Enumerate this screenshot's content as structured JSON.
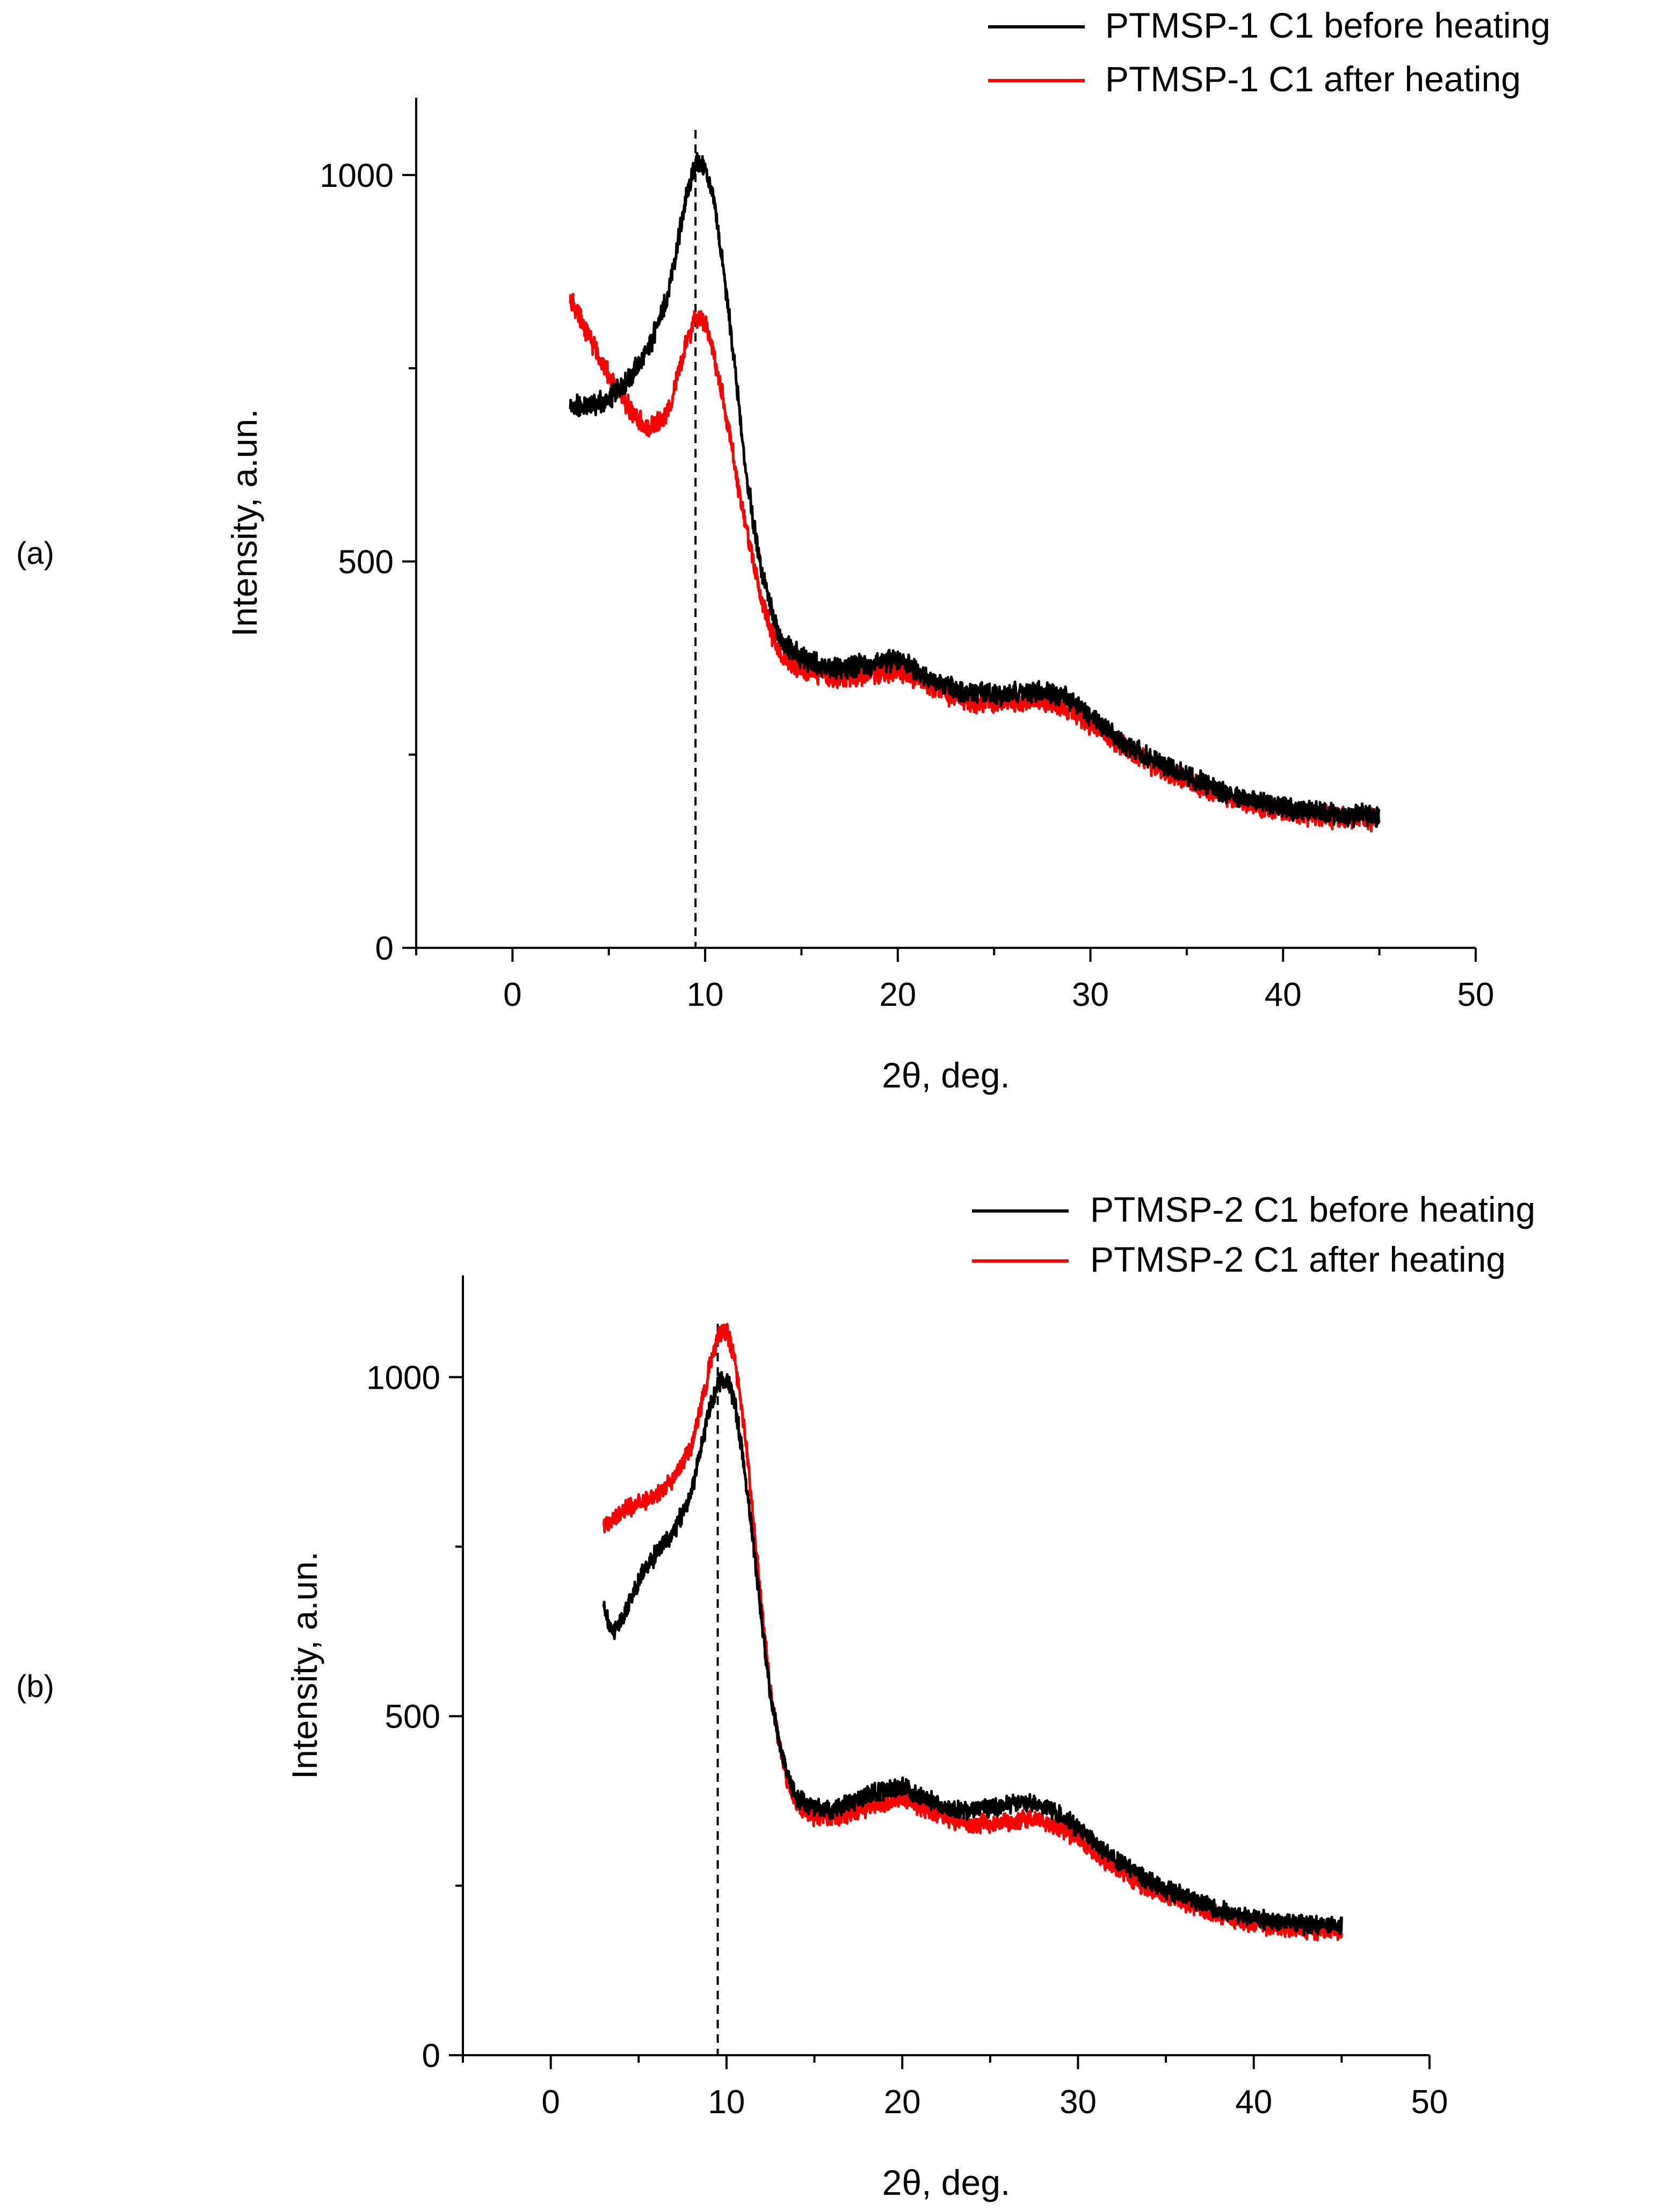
{
  "chart_data": [
    {
      "type": "line",
      "panel_label": "(a)",
      "xlabel": "2θ, deg.",
      "ylabel": "Intensity, a.un.",
      "xlim": [
        -5,
        50
      ],
      "ylim": [
        0,
        1100
      ],
      "xticks": [
        0,
        10,
        20,
        30,
        40,
        50
      ],
      "xtick_labels": [
        "0",
        "10",
        "20",
        "30",
        "40",
        "50"
      ],
      "yticks": [
        0,
        500,
        1000
      ],
      "ytick_labels": [
        "0",
        "500",
        "1000"
      ],
      "minor_xticks": [
        -5,
        5,
        15,
        25,
        35,
        45
      ],
      "minor_yticks": [
        250,
        750
      ],
      "reference_line_x": 9.5,
      "legend_position": "top-right",
      "series": [
        {
          "name": "PTMSP-1 C1 before heating",
          "color": "#000000",
          "x": [
            3,
            4,
            5,
            6,
            7,
            8,
            8.5,
            9,
            9.5,
            10,
            10.5,
            11,
            11.5,
            12,
            12.5,
            13,
            13.5,
            14,
            15,
            16,
            17,
            18,
            19,
            20,
            21,
            22,
            23,
            24,
            25,
            26,
            27,
            28,
            29,
            30,
            31,
            32,
            33,
            34,
            35,
            36,
            37,
            38,
            39,
            40,
            41,
            42,
            43,
            44,
            45
          ],
          "y": [
            700,
            700,
            710,
            735,
            770,
            840,
            900,
            970,
            1015,
            1010,
            960,
            870,
            760,
            640,
            550,
            480,
            430,
            395,
            375,
            365,
            360,
            365,
            370,
            372,
            360,
            345,
            335,
            330,
            328,
            330,
            332,
            330,
            320,
            300,
            280,
            260,
            245,
            235,
            222,
            212,
            202,
            195,
            188,
            182,
            178,
            175,
            173,
            172,
            172
          ]
        },
        {
          "name": "PTMSP-1 C1 after heating",
          "color": "#ff0000",
          "x": [
            3,
            4,
            5,
            6,
            7,
            8,
            8.5,
            9,
            9.5,
            10,
            10.5,
            11,
            11.5,
            12,
            12.5,
            13,
            13.5,
            14,
            15,
            16,
            17,
            18,
            19,
            20,
            21,
            22,
            23,
            24,
            25,
            26,
            27,
            28,
            29,
            30,
            31,
            32,
            33,
            34,
            35,
            36,
            37,
            38,
            39,
            40,
            41,
            42,
            43,
            44,
            45
          ],
          "y": [
            840,
            790,
            740,
            700,
            670,
            690,
            730,
            780,
            815,
            810,
            760,
            700,
            630,
            560,
            500,
            445,
            405,
            375,
            360,
            352,
            350,
            352,
            355,
            358,
            350,
            335,
            325,
            318,
            315,
            318,
            320,
            318,
            308,
            290,
            272,
            255,
            240,
            228,
            216,
            205,
            196,
            189,
            182,
            176,
            172,
            170,
            168,
            167,
            167
          ]
        }
      ]
    },
    {
      "type": "line",
      "panel_label": "(b)",
      "xlabel": "2θ, deg.",
      "ylabel": "Intensity, a.un.",
      "xlim": [
        -5,
        50
      ],
      "ylim": [
        0,
        1150
      ],
      "xticks": [
        0,
        10,
        20,
        30,
        40,
        50
      ],
      "xtick_labels": [
        "0",
        "10",
        "20",
        "30",
        "40",
        "50"
      ],
      "yticks": [
        0,
        500,
        1000
      ],
      "ytick_labels": [
        "0",
        "500",
        "1000"
      ],
      "minor_xticks": [
        -5,
        5,
        15,
        25,
        35,
        45
      ],
      "minor_yticks": [
        250,
        750
      ],
      "reference_line_x": 9.5,
      "legend_position": "top-right",
      "series": [
        {
          "name": "PTMSP-2 C1 before heating",
          "color": "#000000",
          "x": [
            3,
            3.5,
            4,
            5,
            6,
            7,
            8,
            8.5,
            9,
            9.5,
            10,
            10.5,
            11,
            11.5,
            12,
            12.5,
            13,
            13.5,
            14,
            15,
            16,
            17,
            18,
            19,
            20,
            21,
            22,
            23,
            24,
            25,
            26,
            27,
            28,
            29,
            30,
            31,
            32,
            33,
            34,
            35,
            36,
            37,
            38,
            39,
            40,
            41,
            42,
            43,
            44,
            45
          ],
          "y": [
            660,
            625,
            640,
            700,
            740,
            770,
            830,
            890,
            950,
            990,
            1000,
            960,
            870,
            760,
            640,
            530,
            460,
            410,
            380,
            365,
            362,
            372,
            385,
            392,
            395,
            382,
            370,
            362,
            360,
            365,
            370,
            372,
            368,
            355,
            335,
            312,
            292,
            275,
            258,
            245,
            235,
            225,
            215,
            208,
            202,
            198,
            195,
            193,
            192,
            192
          ]
        },
        {
          "name": "PTMSP-2 C1 after heating",
          "color": "#ff0000",
          "x": [
            3,
            3.5,
            4,
            5,
            6,
            7,
            8,
            8.5,
            9,
            9.5,
            10,
            10.5,
            11,
            11.5,
            12,
            12.5,
            13,
            13.5,
            14,
            15,
            16,
            17,
            18,
            19,
            20,
            21,
            22,
            23,
            24,
            25,
            26,
            27,
            28,
            29,
            30,
            31,
            32,
            33,
            34,
            35,
            36,
            37,
            38,
            39,
            40,
            41,
            42,
            43,
            44,
            45
          ],
          "y": [
            780,
            790,
            800,
            815,
            825,
            850,
            900,
            950,
            1010,
            1060,
            1070,
            1020,
            930,
            800,
            660,
            540,
            460,
            400,
            370,
            352,
            350,
            357,
            365,
            372,
            378,
            367,
            355,
            347,
            342,
            342,
            345,
            347,
            345,
            335,
            318,
            298,
            278,
            262,
            248,
            236,
            225,
            215,
            206,
            199,
            194,
            190,
            187,
            185,
            184,
            184
          ]
        }
      ]
    }
  ]
}
